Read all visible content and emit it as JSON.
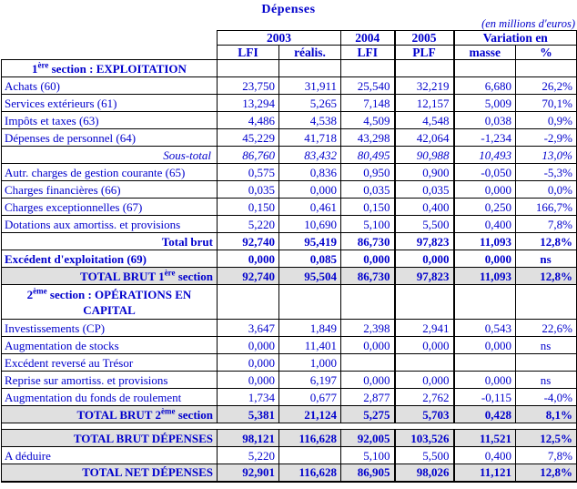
{
  "page": {
    "title": "Dépenses",
    "unit_note": "(en millions d'euros)"
  },
  "colors": {
    "text": "#0000CC",
    "border": "#000000",
    "total_row_bg": "#e0e0e0"
  },
  "header": {
    "groups": [
      {
        "label": "2003"
      },
      {
        "label": "2004"
      },
      {
        "label": "2005"
      },
      {
        "label": "Variation en"
      }
    ],
    "columns": [
      "LFI",
      "réalis.",
      "LFI",
      "PLF",
      "masse",
      "%"
    ]
  },
  "rows": [
    {
      "type": "section",
      "label_parts": [
        "1",
        {
          "sup": "ère"
        },
        " section : EXPLOITATION"
      ],
      "values": [
        "",
        "",
        "",
        "",
        "",
        ""
      ]
    },
    {
      "type": "data",
      "label_parts": [
        "Achats (60)"
      ],
      "values": [
        "23,750",
        "31,911",
        "25,540",
        "32,219",
        "6,680",
        "26,2%"
      ]
    },
    {
      "type": "data",
      "label_parts": [
        "Services extérieurs (61)"
      ],
      "values": [
        "13,294",
        "5,265",
        "7,148",
        "12,157",
        "5,009",
        "70,1%"
      ]
    },
    {
      "type": "data",
      "label_parts": [
        "Impôts et taxes (63)"
      ],
      "values": [
        "4,486",
        "4,538",
        "4,509",
        "4,548",
        "0,038",
        "0,9%"
      ]
    },
    {
      "type": "data",
      "label_parts": [
        "Dépenses de personnel (64)"
      ],
      "values": [
        "45,229",
        "41,718",
        "43,298",
        "42,064",
        "-1,234",
        "-2,9%"
      ]
    },
    {
      "type": "subtotal",
      "label_parts": [
        "Sous-total"
      ],
      "values": [
        "86,760",
        "83,432",
        "80,495",
        "90,988",
        "10,493",
        "13,0%"
      ]
    },
    {
      "type": "data",
      "label_parts": [
        "Autr. charges de gestion courante (65)"
      ],
      "values": [
        "0,575",
        "0,836",
        "0,950",
        "0,900",
        "-0,050",
        "-5,3%"
      ]
    },
    {
      "type": "data",
      "label_parts": [
        "Charges financières (66)"
      ],
      "values": [
        "0,035",
        "0,000",
        "0,035",
        "0,035",
        "0,000",
        "0,0%"
      ]
    },
    {
      "type": "data",
      "label_parts": [
        "Charges exceptionnelles (67)"
      ],
      "values": [
        "0,150",
        "0,461",
        "0,150",
        "0,400",
        "0,250",
        "166,7%"
      ]
    },
    {
      "type": "data",
      "label_parts": [
        "Dotations aux amortiss. et provisions"
      ],
      "values": [
        "5,220",
        "10,690",
        "5,100",
        "5,500",
        "0,400",
        "7,8%"
      ]
    },
    {
      "type": "total",
      "label_parts": [
        "Total brut"
      ],
      "values": [
        "92,740",
        "95,419",
        "86,730",
        "97,823",
        "11,093",
        "12,8%"
      ]
    },
    {
      "type": "boldleft",
      "label_parts": [
        "Excédent d'exploitation (69)"
      ],
      "values": [
        "0,000",
        "0,085",
        "0,000",
        "0,000",
        "0,000",
        "ns"
      ]
    },
    {
      "type": "grand",
      "label_parts": [
        "TOTAL BRUT 1",
        {
          "sup": "ère"
        },
        " section"
      ],
      "values": [
        "92,740",
        "95,504",
        "86,730",
        "97,823",
        "11,093",
        "12,8%"
      ]
    },
    {
      "type": "section2",
      "label_parts": [
        "2",
        {
          "sup": "ème"
        },
        " section : OPÉRATIONS EN",
        {
          "br": true
        },
        "CAPITAL"
      ],
      "values": [
        "",
        "",
        "",
        "",
        "",
        ""
      ]
    },
    {
      "type": "data",
      "label_parts": [
        "Investissements (CP)"
      ],
      "values": [
        "3,647",
        "1,849",
        "2,398",
        "2,941",
        "0,543",
        "22,6%"
      ]
    },
    {
      "type": "data",
      "label_parts": [
        "Augmentation de stocks"
      ],
      "values": [
        "0,000",
        "11,401",
        "0,000",
        "0,000",
        "0,000",
        "ns"
      ]
    },
    {
      "type": "data",
      "label_parts": [
        "Excédent reversé au Trésor"
      ],
      "values": [
        "0,000",
        "1,000",
        "",
        "",
        "",
        ""
      ]
    },
    {
      "type": "data",
      "label_parts": [
        "Reprise sur amortiss. et provisions"
      ],
      "values": [
        "0,000",
        "6,197",
        "0,000",
        "0,000",
        "0,000",
        "ns"
      ]
    },
    {
      "type": "data",
      "label_parts": [
        "Augmentation du fonds de roulement"
      ],
      "values": [
        "1,734",
        "0,677",
        "2,877",
        "2,762",
        "-0,115",
        "-4,0%"
      ]
    },
    {
      "type": "grand",
      "label_parts": [
        "TOTAL BRUT 2",
        {
          "sup": "ème"
        },
        " section"
      ],
      "values": [
        "5,381",
        "21,124",
        "5,275",
        "5,703",
        "0,428",
        "8,1%"
      ]
    },
    {
      "type": "spacer",
      "label_parts": [],
      "values": []
    },
    {
      "type": "grand",
      "label_parts": [
        "TOTAL BRUT DÉPENSES"
      ],
      "values": [
        "98,121",
        "116,628",
        "92,005",
        "103,526",
        "11,521",
        "12,5%"
      ]
    },
    {
      "type": "data",
      "label_parts": [
        "A déduire"
      ],
      "values": [
        "5,220",
        "",
        "5,100",
        "5,500",
        "0,400",
        "7,8%"
      ]
    },
    {
      "type": "grand",
      "label_parts": [
        "TOTAL NET DÉPENSES"
      ],
      "values": [
        "92,901",
        "116,628",
        "86,905",
        "98,026",
        "11,121",
        "12,8%"
      ]
    }
  ]
}
